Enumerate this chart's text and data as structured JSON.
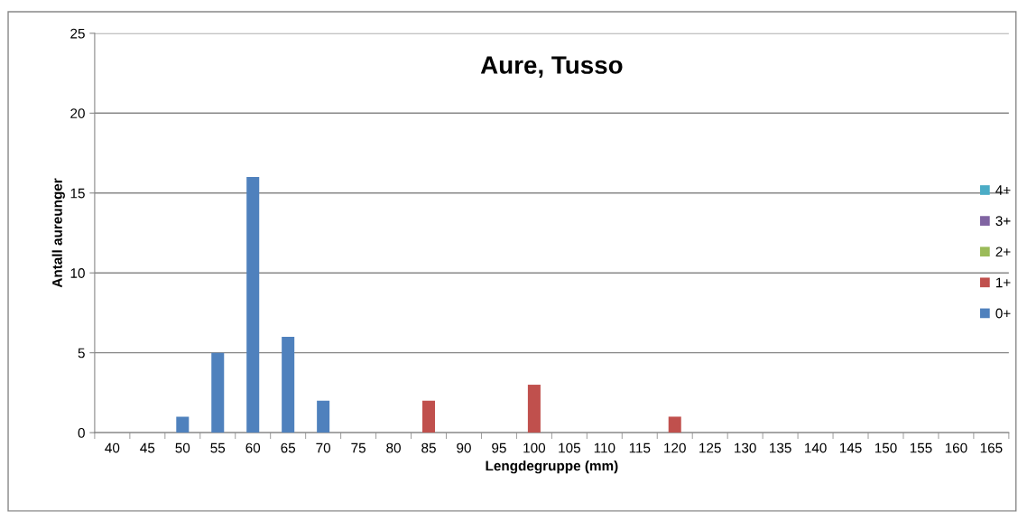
{
  "chart_data": {
    "type": "bar",
    "title": "Aure, Tusso",
    "xlabel": "Lengdegruppe (mm)",
    "ylabel": "Antall aureunger",
    "categories": [
      "40",
      "45",
      "50",
      "55",
      "60",
      "65",
      "70",
      "75",
      "80",
      "85",
      "90",
      "95",
      "100",
      "105",
      "110",
      "115",
      "120",
      "125",
      "130",
      "135",
      "140",
      "145",
      "150",
      "155",
      "160",
      "165"
    ],
    "series": [
      {
        "name": "0+",
        "color": "#4f81bd",
        "values": [
          0,
          0,
          1,
          5,
          16,
          6,
          2,
          0,
          0,
          0,
          0,
          0,
          0,
          0,
          0,
          0,
          0,
          0,
          0,
          0,
          0,
          0,
          0,
          0,
          0,
          0
        ]
      },
      {
        "name": "1+",
        "color": "#c0504d",
        "values": [
          0,
          0,
          0,
          0,
          0,
          0,
          0,
          0,
          0,
          2,
          0,
          0,
          3,
          0,
          0,
          0,
          1,
          0,
          0,
          0,
          0,
          0,
          0,
          0,
          0,
          0
        ]
      },
      {
        "name": "2+",
        "color": "#9bbb59",
        "values": [
          0,
          0,
          0,
          0,
          0,
          0,
          0,
          0,
          0,
          0,
          0,
          0,
          0,
          0,
          0,
          0,
          0,
          0,
          0,
          0,
          0,
          0,
          0,
          0,
          0,
          0
        ]
      },
      {
        "name": "3+",
        "color": "#8064a2",
        "values": [
          0,
          0,
          0,
          0,
          0,
          0,
          0,
          0,
          0,
          0,
          0,
          0,
          0,
          0,
          0,
          0,
          0,
          0,
          0,
          0,
          0,
          0,
          0,
          0,
          0,
          0
        ]
      },
      {
        "name": "4+",
        "color": "#4bacc6",
        "values": [
          0,
          0,
          0,
          0,
          0,
          0,
          0,
          0,
          0,
          0,
          0,
          0,
          0,
          0,
          0,
          0,
          0,
          0,
          0,
          0,
          0,
          0,
          0,
          0,
          0,
          0
        ]
      }
    ],
    "ylim": [
      0,
      25
    ],
    "yticks": [
      0,
      5,
      10,
      15,
      20,
      25
    ],
    "grid": "y",
    "legend": "right"
  }
}
